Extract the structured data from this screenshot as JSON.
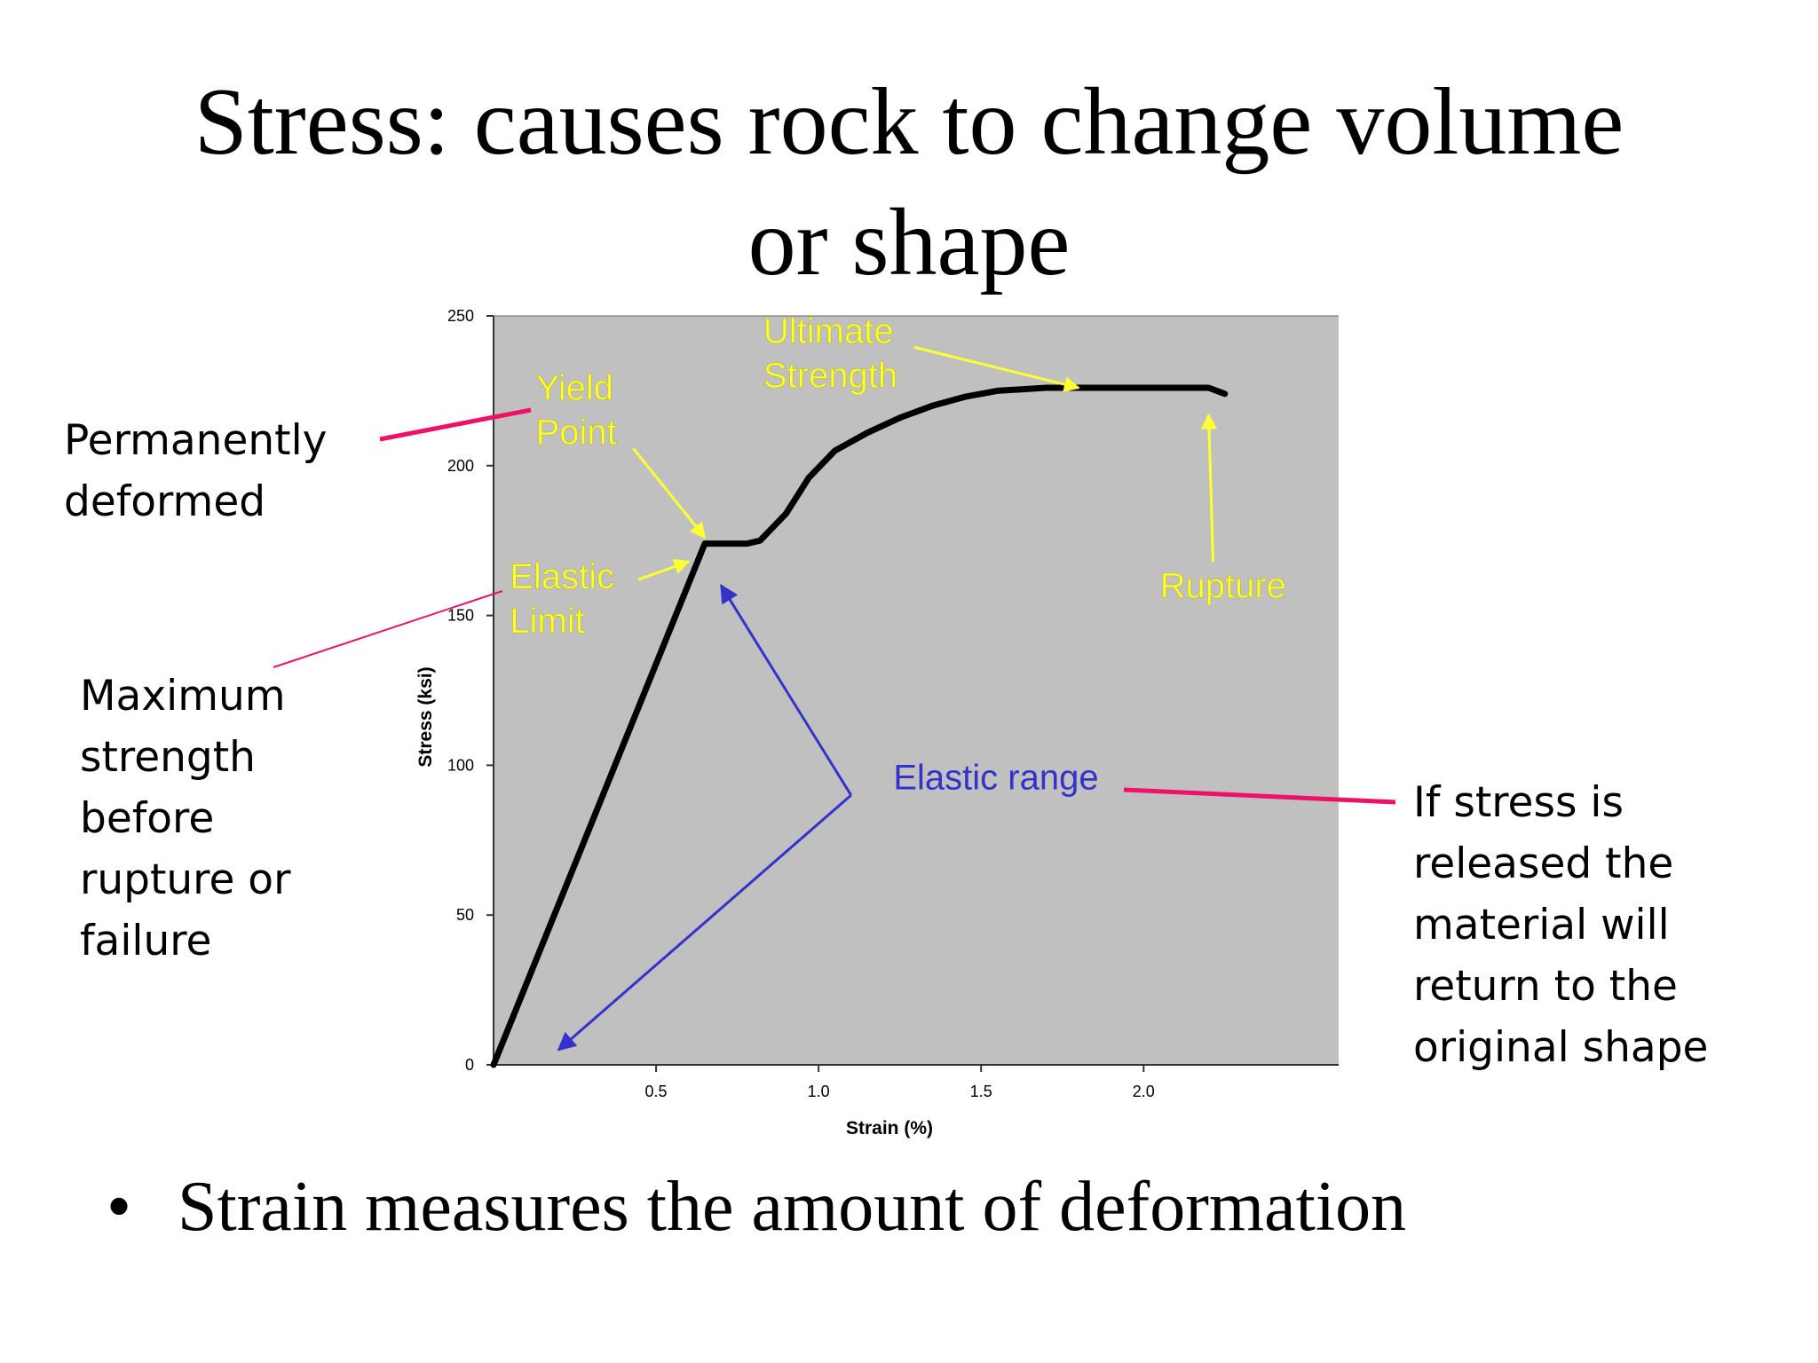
{
  "slide": {
    "title_line1": "Stress: causes rock to change volume",
    "title_line2": "or shape",
    "bullet": "Strain measures the amount of deformation",
    "bullet_symbol": "•"
  },
  "notes": {
    "permanently_deformed": [
      "Permanently",
      "deformed"
    ],
    "maximum_strength": [
      "Maximum",
      "strength",
      "before",
      "rupture or",
      "failure"
    ],
    "if_stress_released": [
      "If stress is",
      "released the",
      "material will",
      "return to the",
      "original shape"
    ]
  },
  "chart_data": {
    "type": "line",
    "xlabel": "Strain (%)",
    "ylabel": "Stress (ksi)",
    "xlim": [
      0.0,
      2.6
    ],
    "ylim": [
      0,
      250
    ],
    "xticks": [
      0.5,
      1.0,
      1.5,
      2.0
    ],
    "xtick_labels": [
      "0.5",
      "1.0",
      "1.5",
      "2.0"
    ],
    "yticks": [
      0,
      50,
      100,
      150,
      200,
      250
    ],
    "ytick_labels": [
      "0",
      "50",
      "100",
      "150",
      "200",
      "250"
    ],
    "grid": false,
    "plot_background": "#c0c0c0",
    "series": [
      {
        "color": "#000000",
        "points": [
          [
            0.0,
            0
          ],
          [
            0.65,
            174
          ],
          [
            0.78,
            174
          ],
          [
            0.82,
            175
          ],
          [
            0.9,
            184
          ],
          [
            0.97,
            196
          ],
          [
            1.05,
            205
          ],
          [
            1.15,
            211
          ],
          [
            1.25,
            216
          ],
          [
            1.35,
            220
          ],
          [
            1.45,
            223
          ],
          [
            1.55,
            225
          ],
          [
            1.7,
            226
          ],
          [
            2.0,
            226
          ],
          [
            2.2,
            226
          ],
          [
            2.25,
            224
          ]
        ]
      }
    ],
    "annotations": [
      {
        "text": "Ultimate\nStrength",
        "color": "#ffff33",
        "x": 0.83,
        "y": 241,
        "arrow_to": [
          1.8,
          226
        ]
      },
      {
        "text": "Yield\nPoint",
        "color": "#ffff33",
        "x": 0.13,
        "y": 222,
        "arrow_to": [
          0.65,
          176
        ]
      },
      {
        "text": "Elastic\nLimit",
        "color": "#ffff33",
        "x": 0.05,
        "y": 159,
        "arrow_to": [
          0.6,
          168
        ]
      },
      {
        "text": "Rupture",
        "color": "#ffff33",
        "x": 2.05,
        "y": 156,
        "arrow_to": [
          2.2,
          217
        ]
      },
      {
        "text": "Elastic range",
        "color": "#3333cc",
        "x": 1.23,
        "y": 92,
        "arrow_from": [
          1.1,
          90
        ],
        "arrow_to": [
          [
            0.7,
            160
          ],
          [
            0.2,
            5
          ]
        ]
      }
    ],
    "callout_line_color": "#ee1166"
  }
}
